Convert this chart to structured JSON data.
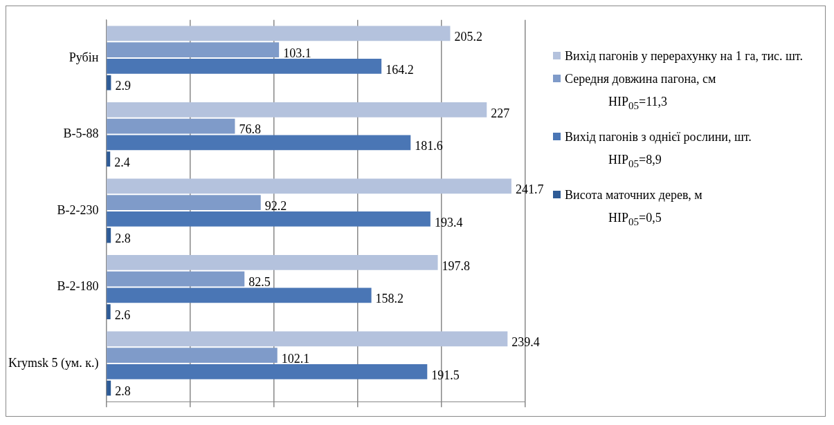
{
  "chart_data": {
    "type": "bar",
    "orientation": "horizontal",
    "categories": [
      "Рубін",
      "В-5-88",
      "В-2-230",
      "В-2-180",
      "Krymsk 5 (ум. к.)"
    ],
    "series": [
      {
        "name": "Вихід пагонів у перерахунку на 1 га, тис. шт.",
        "color": "#b4c2dd",
        "values": [
          205.2,
          227,
          241.7,
          197.8,
          239.4
        ]
      },
      {
        "name": "Середня довжина пагона, см",
        "color": "#7f9bc9",
        "values": [
          103.1,
          76.8,
          92.2,
          82.5,
          102.1
        ]
      },
      {
        "name": "Вихід пагонів з однієї рослини, шт.",
        "color": "#4a76b5",
        "values": [
          164.2,
          181.6,
          193.4,
          158.2,
          191.5
        ]
      },
      {
        "name": "Висота маточних дерев, м",
        "color": "#2e5b96",
        "values": [
          2.9,
          2.4,
          2.8,
          2.6,
          2.8
        ]
      }
    ],
    "xlim": [
      0,
      250
    ],
    "xticks": [
      {
        "value": 0,
        "label": null
      },
      {
        "value": 50,
        "label": null
      },
      {
        "value": 100,
        "label": null
      },
      {
        "value": 150,
        "label": null
      },
      {
        "value": 200,
        "label": null
      },
      {
        "value": 250,
        "label": null
      }
    ],
    "tick_labels": "y",
    "grid": "x",
    "data_labels": true,
    "legend": "right",
    "annotations": [
      "НІР$_{05}$=11,3",
      "НІР$_{05}$=8,9",
      "НІР$_{05}$=0,5"
    ]
  }
}
